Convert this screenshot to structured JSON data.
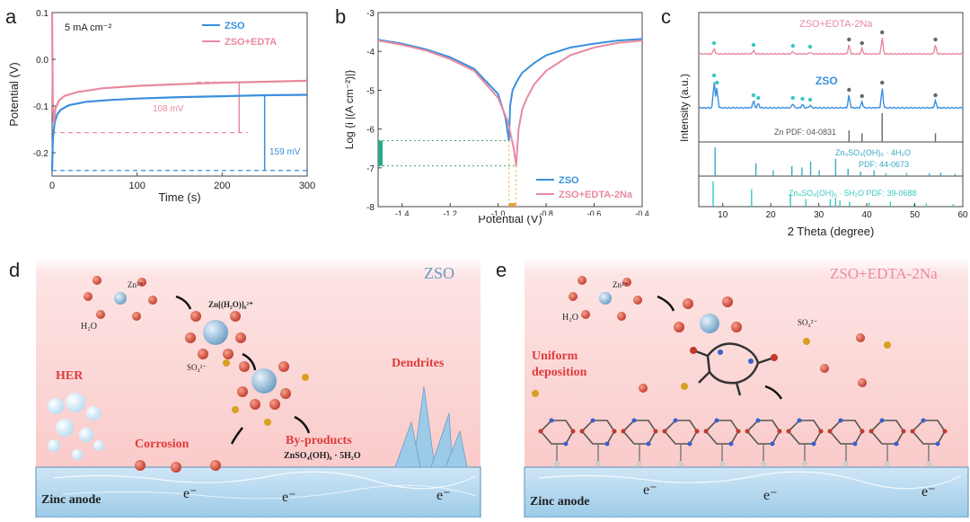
{
  "panel_a": {
    "letter": "a",
    "chart_data": {
      "type": "line",
      "annotation": "5 mA cm⁻²",
      "xlabel": "Time (s)",
      "ylabel": "Potential (V)",
      "xlim": [
        0,
        300
      ],
      "ylim": [
        -0.25,
        0.1
      ],
      "xticks": [
        "0",
        "100",
        "200",
        "300"
      ],
      "yticks": [
        "0.1",
        "0.0",
        "-0.1",
        "-0.2"
      ],
      "series": [
        {
          "name": "ZSO",
          "color": "#3a8fde",
          "x": [
            0,
            1,
            3,
            6,
            10,
            20,
            40,
            70,
            100,
            150,
            200,
            250,
            300
          ],
          "y": [
            -0.238,
            -0.17,
            -0.135,
            -0.118,
            -0.108,
            -0.098,
            -0.091,
            -0.087,
            -0.084,
            -0.081,
            -0.079,
            -0.077,
            -0.076
          ]
        },
        {
          "name": "ZSO+EDTA",
          "color": "#e98aa0",
          "x": [
            0,
            0.5,
            1,
            2,
            4,
            8,
            15,
            30,
            60,
            100,
            150,
            200,
            250,
            300
          ],
          "y": [
            0.1,
            -0.02,
            -0.1,
            -0.135,
            -0.105,
            -0.088,
            -0.078,
            -0.07,
            -0.062,
            -0.057,
            -0.053,
            -0.05,
            -0.048,
            -0.046
          ]
        }
      ],
      "labels": {
        "pink_gap": "108 mV",
        "blue_gap": "159 mV"
      }
    }
  },
  "panel_b": {
    "letter": "b",
    "chart_data": {
      "type": "line",
      "xlabel": "Potential (V)",
      "ylabel": "Log {i |(A cm⁻²)|}",
      "xlim": [
        -1.5,
        -0.4
      ],
      "ylim": [
        -8,
        -3
      ],
      "xticks": [
        "-1.4",
        "-1.2",
        "-1.0",
        "-0.8",
        "-0.6",
        "-0.4"
      ],
      "yticks": [
        "-3",
        "-4",
        "-5",
        "-6",
        "-7",
        "-8"
      ],
      "series": [
        {
          "name": "ZSO",
          "color": "#3a8fde",
          "x": [
            -1.5,
            -1.4,
            -1.3,
            -1.2,
            -1.1,
            -1.0,
            -0.97,
            -0.955,
            -0.95,
            -0.94,
            -0.92,
            -0.9,
            -0.85,
            -0.8,
            -0.7,
            -0.6,
            -0.5,
            -0.4
          ],
          "y": [
            -3.7,
            -3.8,
            -3.95,
            -4.15,
            -4.45,
            -5.1,
            -5.7,
            -6.3,
            -5.4,
            -5.0,
            -4.75,
            -4.55,
            -4.3,
            -4.1,
            -3.9,
            -3.8,
            -3.72,
            -3.68
          ]
        },
        {
          "name": "ZSO+EDTA-2Na",
          "color": "#e98aa0",
          "x": [
            -1.5,
            -1.4,
            -1.3,
            -1.2,
            -1.1,
            -1.0,
            -0.96,
            -0.935,
            -0.925,
            -0.915,
            -0.9,
            -0.88,
            -0.85,
            -0.8,
            -0.7,
            -0.6,
            -0.5,
            -0.4
          ],
          "y": [
            -3.72,
            -3.83,
            -3.98,
            -4.2,
            -4.5,
            -5.2,
            -5.8,
            -6.5,
            -6.95,
            -6.0,
            -5.5,
            -5.2,
            -4.85,
            -4.5,
            -4.1,
            -3.9,
            -3.78,
            -3.72
          ]
        }
      ]
    }
  },
  "panel_c": {
    "letter": "c",
    "chart_data": {
      "type": "line",
      "xlabel": "2 Theta (degree)",
      "ylabel": "Intensity (a.u.)",
      "xlim": [
        5,
        60
      ],
      "xticks": [
        "10",
        "20",
        "30",
        "40",
        "50",
        "60"
      ],
      "series": [
        {
          "name": "ZSO+EDTA-2Na",
          "color": "#e98aa0",
          "peaks": [
            [
              8.2,
              6
            ],
            [
              16.4,
              4
            ],
            [
              24.6,
              3
            ],
            [
              28.2,
              2
            ],
            [
              36.3,
              10
            ],
            [
              39.0,
              6
            ],
            [
              43.2,
              18
            ],
            [
              54.3,
              10
            ]
          ]
        },
        {
          "name": "ZSO",
          "color": "#3a8fde",
          "peaks": [
            [
              8.2,
              30
            ],
            [
              8.8,
              22
            ],
            [
              16.4,
              8
            ],
            [
              17.4,
              5
            ],
            [
              24.6,
              5
            ],
            [
              26.6,
              4
            ],
            [
              28.2,
              3
            ],
            [
              36.3,
              14
            ],
            [
              39.0,
              7
            ],
            [
              43.2,
              22
            ],
            [
              54.3,
              8
            ]
          ]
        }
      ],
      "references": [
        {
          "label": "Zn PDF: 04-0831",
          "color": "#666666",
          "lines": [
            [
              36.3,
              0.4
            ],
            [
              39.0,
              0.3
            ],
            [
              43.2,
              1.0
            ],
            [
              54.3,
              0.3
            ]
          ]
        },
        {
          "label": "Zn₄SO₄(OH)₆ · 4H₂O",
          "label2": "PDF: 44-0673",
          "color": "#3aa8c8",
          "lines": [
            [
              8.4,
              1.0
            ],
            [
              16.9,
              0.45
            ],
            [
              20.5,
              0.2
            ],
            [
              24.4,
              0.35
            ],
            [
              26.5,
              0.3
            ],
            [
              28.3,
              0.5
            ],
            [
              30.1,
              0.2
            ],
            [
              33.5,
              0.6
            ],
            [
              36.1,
              0.25
            ],
            [
              38.7,
              0.15
            ],
            [
              41.5,
              0.2
            ],
            [
              44.0,
              0.1
            ],
            [
              48.3,
              0.1
            ],
            [
              53.0,
              0.1
            ],
            [
              55.4,
              0.12
            ],
            [
              58.4,
              0.08
            ]
          ]
        },
        {
          "label": "Zn₄SO₄(OH)₆ · 5H₂O PDF: 39-0688",
          "color": "#3ac8c0",
          "lines": [
            [
              8.0,
              1.0
            ],
            [
              16.0,
              0.7
            ],
            [
              24.1,
              0.5
            ],
            [
              27.3,
              0.3
            ],
            [
              32.4,
              0.3
            ],
            [
              33.5,
              0.35
            ],
            [
              34.4,
              0.25
            ],
            [
              36.4,
              0.2
            ],
            [
              40.5,
              0.15
            ],
            [
              44.9,
              0.2
            ],
            [
              49.8,
              0.1
            ],
            [
              52.4,
              0.12
            ],
            [
              58.0,
              0.1
            ]
          ]
        }
      ]
    }
  },
  "panel_d": {
    "letter": "d",
    "title": "ZSO",
    "labels": {
      "h2o": "H₂O",
      "zn": "Zn²⁺",
      "complex": "Zn[(H₂O)]₆²⁺",
      "so4": "SO₄²⁻",
      "her": "HER",
      "dendrites": "Dendrites",
      "corrosion": "Corrosion",
      "byproducts": "By-products",
      "byproducts_formula": "ZnSO₄(OH)₆ · 5H₂O",
      "anode": "Zinc anode",
      "electron": "e⁻"
    }
  },
  "panel_e": {
    "letter": "e",
    "title": "ZSO+EDTA-2Na",
    "labels": {
      "h2o": "H₂O",
      "zn": "Zn²⁺",
      "so4": "SO₄²⁻",
      "uniform1": "Uniform",
      "uniform2": "deposition",
      "anode": "Zinc anode",
      "electron": "e⁻"
    }
  }
}
